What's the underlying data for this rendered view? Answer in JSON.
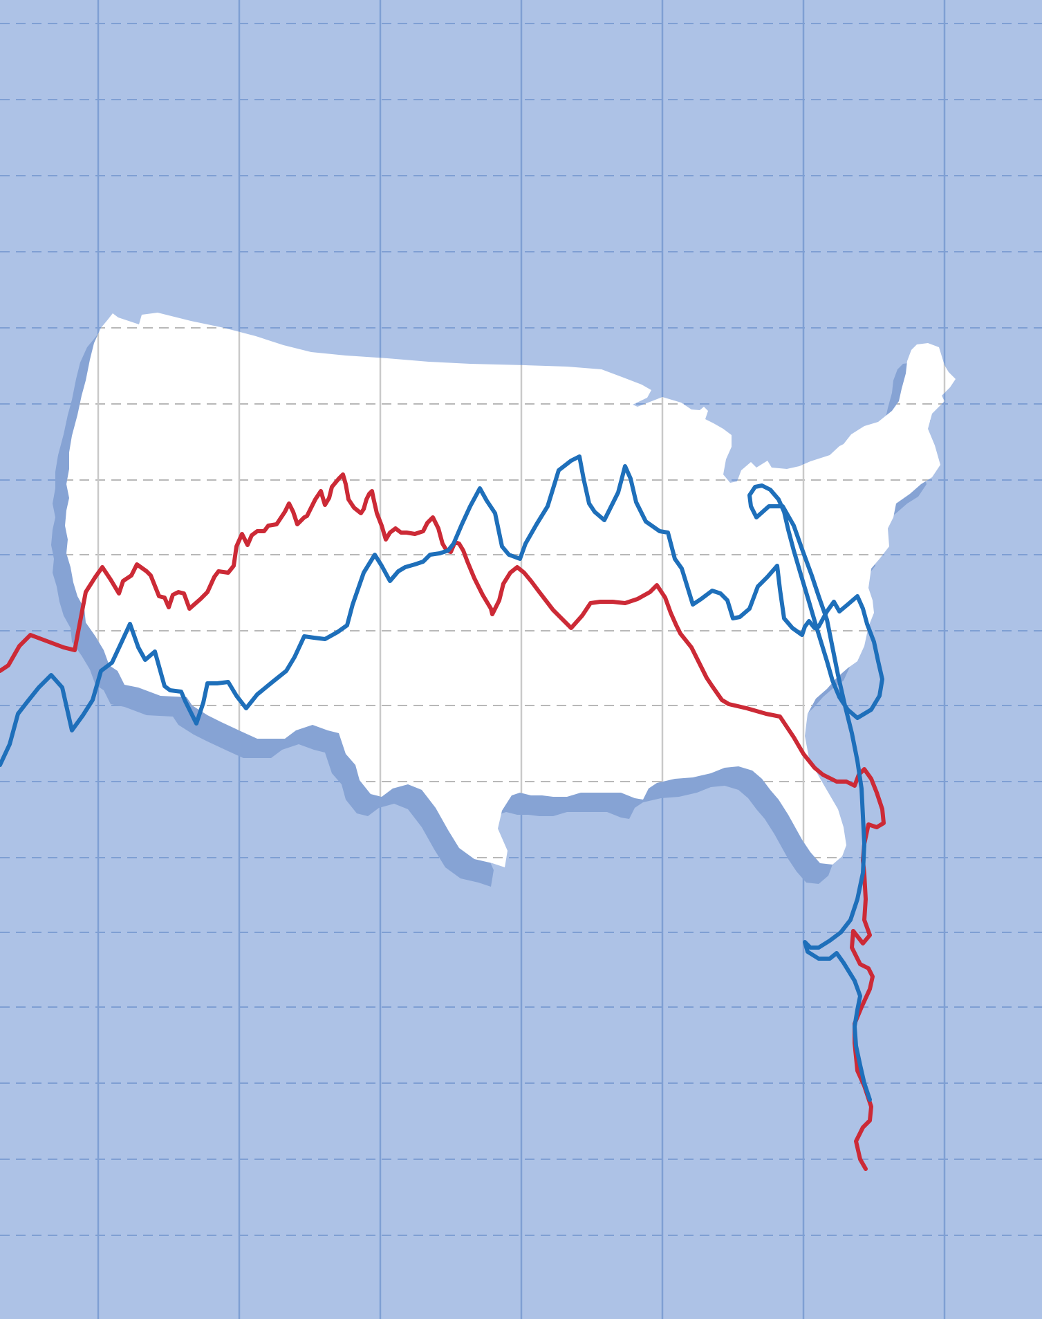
{
  "illustration": {
    "subject": "us-map-with-intertwined-line-graphs",
    "colors": {
      "background": "#adc2e6",
      "grid_vertical": "#7f9fd3",
      "grid_dashed": "#7f9fd3",
      "map_fill": "#ffffff",
      "map_shadow": "#86a3d4",
      "map_grid_vertical": "#c9c9c9",
      "map_grid_dashed": "#b8b8b8",
      "red_series": "#cc2a36",
      "blue_series": "#1e6fba"
    },
    "series": [
      {
        "color_key": "red_series"
      },
      {
        "color_key": "blue_series"
      }
    ]
  }
}
